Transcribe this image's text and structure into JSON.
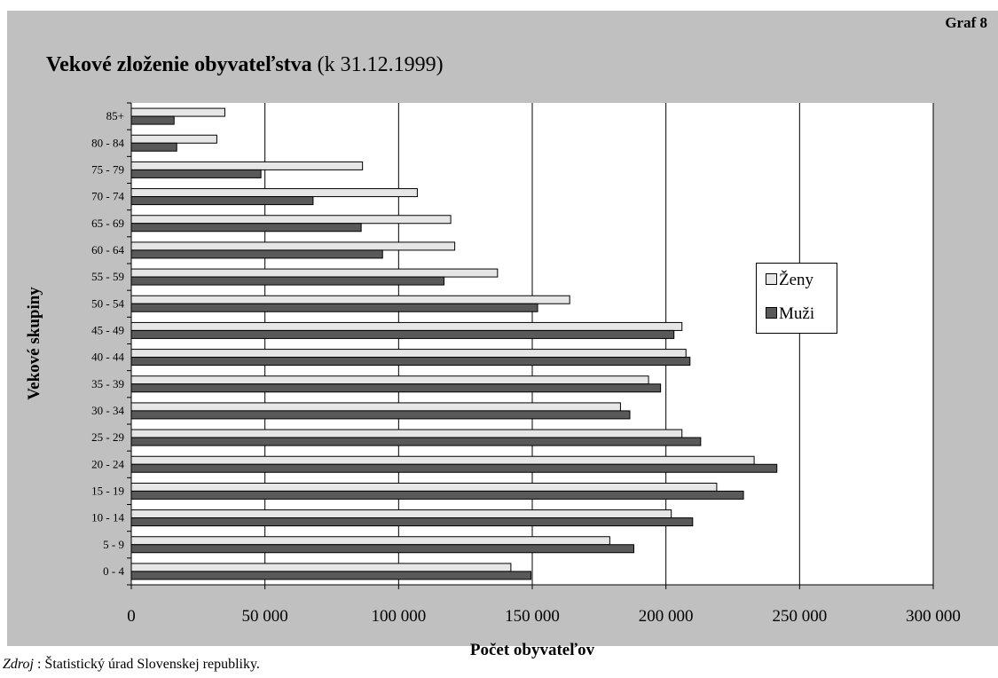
{
  "header": {
    "graf_label": "Graf 8",
    "title_bold": "Vekové zloženie obyvateľstva",
    "title_rest": " (k 31.12.1999)"
  },
  "source": {
    "label": "Zdroj",
    "text": " : Štatistický úrad Slovenskej republiky."
  },
  "colors": {
    "zeny": "#e6e6e6",
    "muzi": "#595959",
    "panel": "#c0c0c0",
    "plot": "#ffffff"
  },
  "chart_data": {
    "type": "bar",
    "orientation": "horizontal",
    "xlabel": "Počet obyvateľov",
    "ylabel": "Vekové skupiny",
    "xlim": [
      0,
      300000
    ],
    "xticks": [
      "0",
      "50 000",
      "100 000",
      "150 000",
      "200 000",
      "250 000",
      "300 000"
    ],
    "grid": "vertical",
    "legend_position": "right",
    "categories": [
      "0 - 4",
      "5 - 9",
      "10 - 14",
      "15 - 19",
      "20 - 24",
      "25 - 29",
      "30 - 34",
      "35 - 39",
      "40 - 44",
      "45 - 49",
      "50 - 54",
      "55 - 59",
      "60 - 64",
      "65 - 69",
      "70 - 74",
      "75 - 79",
      "80 - 84",
      "85+"
    ],
    "series": [
      {
        "name": "Ženy",
        "values": [
          142000,
          179000,
          202000,
          219000,
          233000,
          206000,
          183000,
          193500,
          207500,
          206000,
          164000,
          137000,
          121000,
          119500,
          107000,
          86500,
          32000,
          35000
        ]
      },
      {
        "name": "Muži",
        "values": [
          149500,
          188000,
          210000,
          229000,
          241500,
          213000,
          186500,
          198000,
          209000,
          203000,
          152000,
          117000,
          94000,
          86000,
          68000,
          48500,
          17000,
          16000
        ]
      }
    ]
  }
}
